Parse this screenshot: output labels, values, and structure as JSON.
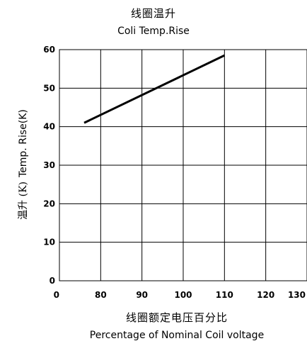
{
  "chart_data": {
    "type": "line",
    "title": "线圈温升",
    "subtitle": "Coli   Temp.Rise",
    "xlabel": "线圈额定电压百分比",
    "xlabel_en": "Percentage of Nominal Coil voltage",
    "ylabel_cn": "温升 (K)",
    "ylabel_en": "Temp.  Rise(K)",
    "xlim": [
      70,
      130
    ],
    "ylim": [
      0,
      60
    ],
    "x_ticks": [
      "0",
      "80",
      "90",
      "100",
      "110",
      "120",
      "130"
    ],
    "y_ticks": [
      "0",
      "10",
      "20",
      "30",
      "40",
      "50",
      "60"
    ],
    "grid": true,
    "series": [
      {
        "x": [
          76,
          110
        ],
        "y": [
          41,
          58.5
        ]
      }
    ]
  }
}
